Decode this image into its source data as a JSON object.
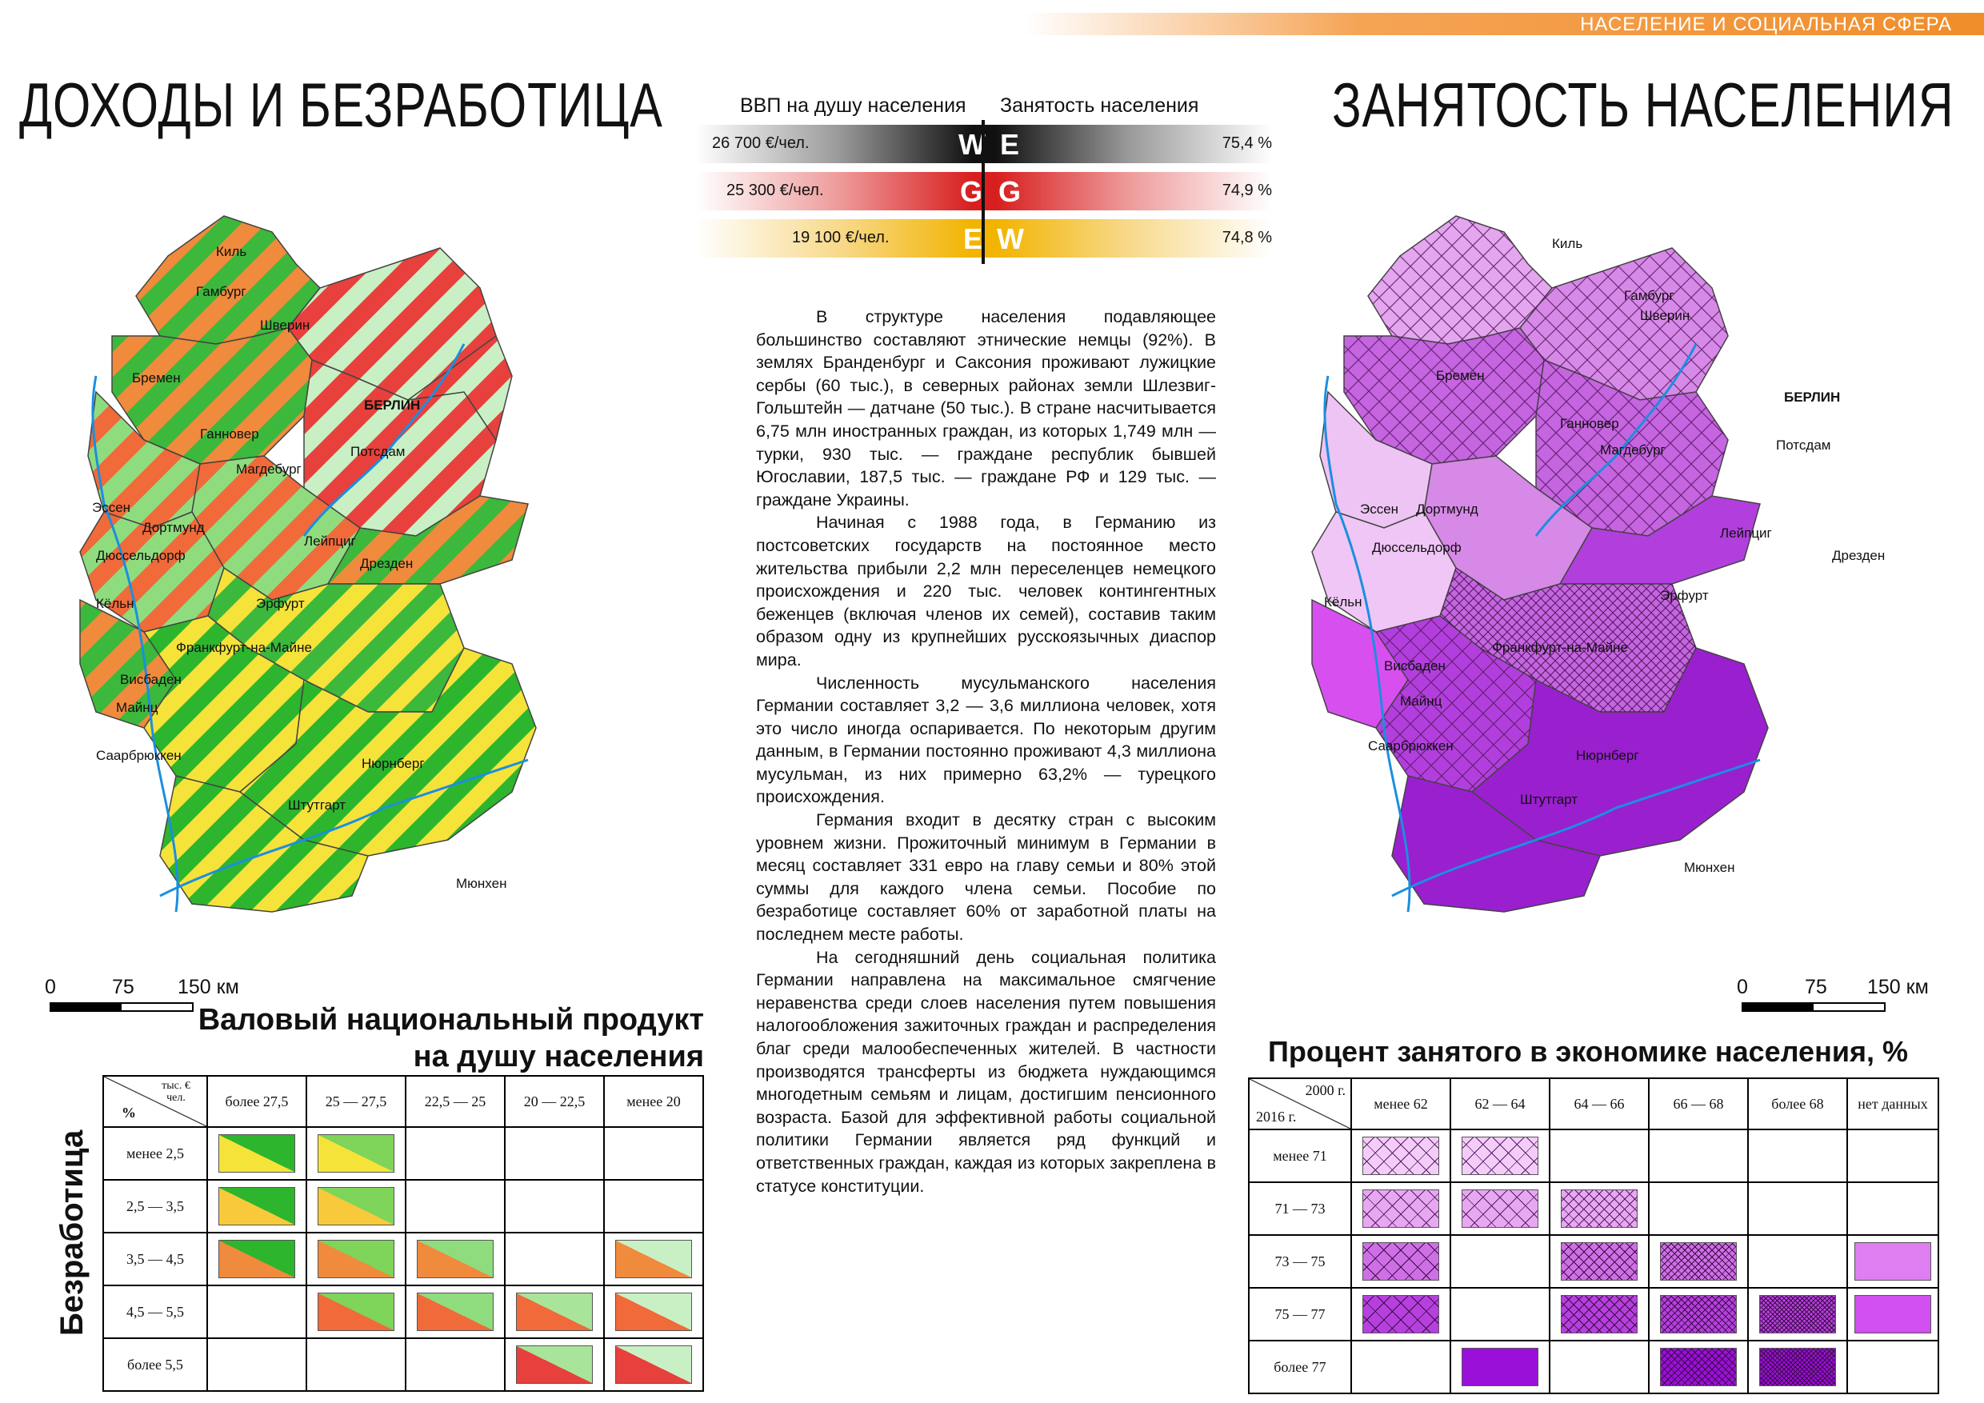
{
  "header": {
    "section": "НАСЕЛЕНИЕ И СОЦИАЛЬНАЯ СФЕРА"
  },
  "left_title": "ДОХОДЫ И БЕЗРАБОТИЦА",
  "right_title": "ЗАНЯТОСТЬ НАСЕЛЕНИЯ",
  "compare": {
    "left_header": "ВВП на душу населения",
    "right_header": "Занятость населения",
    "rows": [
      {
        "gdp": "26 700 €/чел.",
        "l": "W",
        "r": "E",
        "emp": "75,4 %",
        "color": "#111111"
      },
      {
        "gdp": "25 300 €/чел.",
        "l": "G",
        "r": "G",
        "emp": "74,9 %",
        "color": "#d81e1e"
      },
      {
        "gdp": "19 100 €/чел.",
        "l": "E",
        "r": "W",
        "emp": "74,8 %",
        "color": "#f2b400"
      }
    ]
  },
  "body": {
    "p1": "В структуре населения подавляющее большинство составляют этнические немцы (92%). В землях Бранденбург и Саксония проживают лужицкие сербы (60 тыс.), в северных районах земли Шлезвиг-Гольштейн — датчане (50 тыс.). В стране насчитывается 6,75 млн иностранных граждан, из которых 1,749 млн — турки, 930 тыс. — граждане республик бывшей Югославии, 187,5 тыс. — граждане РФ и 129 тыс. — граждане Украины.",
    "p2": "Начиная с 1988 года, в Германию из постсоветских государств на постоянное место жительства прибыли 2,2 млн переселенцев немецкого происхождения и 220 тыс. человек контингентных беженцев (включая членов их семей), составив таким образом одну из крупнейших русскоязычных диаспор мира.",
    "p3": "Численность мусульманского населения Германии составляет 3,2 — 3,6 миллиона человек, хотя это число иногда оспаривается. По некоторым другим данным, в Германии постоянно проживают 4,3 миллиона мусульман, из них примерно 63,2% — турецкого происхождения.",
    "p4": "Германия входит в десятку стран с высоким уровнем жизни. Прожиточный минимум в Германии в месяц составляет 331 евро на главу семьи и 80% этой суммы для каждого члена семьи. Пособие по безработице составляет 60% от заработной платы на последнем месте работы.",
    "p5": "На сегодняшний день социальная политика Германии направлена на максимальное смягчение неравенства среди слоев населения путем повышения налогообложения зажиточных граждан и распределения благ среди малообеспеченных жителей. В частности производятся трансферты из бюджета нуждающимся многодетным семьям и лицам, достигшим пенсионного возраста. Базой для эффективной работы социальной политики Германии является ряд функций и ответственных граждан, каждая из которых закреплена в статусе конституции."
  },
  "scale": {
    "s0": "0",
    "s1": "75",
    "s2": "150 км"
  },
  "left_legend": {
    "title1": "Валовый национальный продукт",
    "title2": "на душу населения",
    "side_label": "Безработица",
    "corner_top": "тыс. € чел.",
    "corner_bottom": "%",
    "cols": [
      "более 27,5",
      "25 — 27,5",
      "22,5 — 25",
      "20 — 22,5",
      "менее 20"
    ],
    "rows": [
      "менее 2,5",
      "2,5 — 3,5",
      "3,5 — 4,5",
      "4,5 — 5,5",
      "более 5,5"
    ]
  },
  "right_legend": {
    "title": "Процент занятого в экономике населения, %",
    "corner_top": "2000 г.",
    "corner_bottom": "2016 г.",
    "cols": [
      "менее 62",
      "62 — 64",
      "64 — 66",
      "66 — 68",
      "более 68",
      "нет данных"
    ],
    "rows": [
      "менее 71",
      "71 — 73",
      "73 — 75",
      "75 — 77",
      "более 77"
    ]
  },
  "left_map_labels": [
    "Киль",
    "Гамбург",
    "Шверин",
    "Бремен",
    "БЕРЛИН",
    "Потсдам",
    "Ганновер",
    "Магдебург",
    "Эссен",
    "Дортмунд",
    "Лейпциг",
    "Дюссельдорф",
    "Дрезден",
    "Кёльн",
    "Эрфурт",
    "Франкфурт-на-Майне",
    "Висбаден",
    "Майнц",
    "Саарбрюккен",
    "Нюрнберг",
    "Штутгарт",
    "Мюнхен"
  ],
  "right_map_labels": [
    "Киль",
    "Гамбург",
    "Шверин",
    "Бремен",
    "БЕРЛИН",
    "Потсдам",
    "Ганновер",
    "Магдебург",
    "Эссен",
    "Дортмунд",
    "Лейпциг",
    "Дюссельдорф",
    "Дрезден",
    "Кёльн",
    "Эрфурт",
    "Франкфурт-на-Майне",
    "Висбаден",
    "Майнц",
    "Саарбрюккен",
    "Нюрнберг",
    "Штутгарт",
    "Мюнхен"
  ]
}
